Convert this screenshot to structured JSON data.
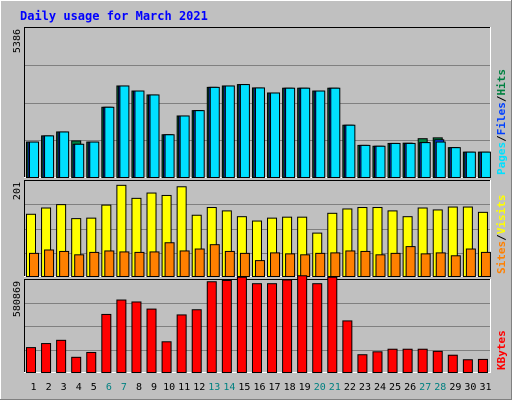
{
  "chart_data": {
    "type": "bar",
    "title": "Daily usage for March 2021",
    "categories": [
      "1",
      "2",
      "3",
      "4",
      "5",
      "6",
      "7",
      "8",
      "9",
      "10",
      "11",
      "12",
      "13",
      "14",
      "15",
      "16",
      "17",
      "18",
      "19",
      "20",
      "21",
      "22",
      "23",
      "24",
      "25",
      "26",
      "27",
      "28",
      "29",
      "30",
      "31"
    ],
    "weekend_days": [
      "6",
      "7",
      "13",
      "14",
      "20",
      "21",
      "27",
      "28"
    ],
    "panels": [
      {
        "name": "hits-files-pages",
        "ymax_label": "5386",
        "ymax": 5386,
        "legend": [
          {
            "text": "Pages",
            "color": "#00e0ff"
          },
          {
            "text": "/",
            "color": "#000000"
          },
          {
            "text": "Files",
            "color": "#0040ff"
          },
          {
            "text": "/",
            "color": "#000000"
          },
          {
            "text": "Hits",
            "color": "#008040"
          }
        ],
        "series": [
          {
            "name": "Hits",
            "color": "#008040",
            "values": [
              1300,
              1520,
              1660,
              1340,
              1300,
              2540,
              3300,
              3120,
              2980,
              1560,
              2230,
              2420,
              3250,
              3300,
              3350,
              3230,
              3050,
              3220,
              3220,
              3120,
              3220,
              1900,
              1180,
              1150,
              1250,
              1260,
              1420,
              1450,
              1100,
              940,
              940
            ]
          },
          {
            "name": "Files",
            "color": "#0040ff",
            "values": [
              1300,
              1520,
              1660,
              1220,
              1300,
              2540,
              3300,
              3120,
              2980,
              1560,
              2230,
              2420,
              3250,
              3300,
              3350,
              3230,
              3050,
              3220,
              3220,
              3120,
              3220,
              1900,
              1180,
              1150,
              1250,
              1250,
              1280,
              1380,
              1100,
              940,
              940
            ]
          },
          {
            "name": "Pages",
            "color": "#00e0ff",
            "values": [
              1300,
              1520,
              1660,
              1220,
              1300,
              2540,
              3300,
              3120,
              2980,
              1560,
              2230,
              2420,
              3250,
              3300,
              3350,
              3230,
              3050,
              3220,
              3220,
              3120,
              3220,
              1900,
              1180,
              1150,
              1250,
              1250,
              1280,
              1300,
              1100,
              940,
              940
            ]
          }
        ]
      },
      {
        "name": "visits-sites",
        "ymax_label": "201",
        "ymax": 201,
        "legend": [
          {
            "text": "Sites",
            "color": "#ff8000"
          },
          {
            "text": "/",
            "color": "#000000"
          },
          {
            "text": "Visits",
            "color": "#ffff00"
          }
        ],
        "series": [
          {
            "name": "Visits",
            "color": "#ffff00",
            "values": [
              131,
              144,
              151,
              122,
              123,
              150,
              191,
              164,
              175,
              170,
              188,
              129,
              145,
              138,
              126,
              117,
              123,
              125,
              125,
              92,
              133,
              142,
              145,
              145,
              138,
              126,
              144,
              140,
              146,
              146,
              135
            ]
          },
          {
            "name": "Sites",
            "color": "#ff8000",
            "values": [
              50,
              57,
              54,
              47,
              52,
              55,
              53,
              52,
              53,
              72,
              55,
              59,
              68,
              54,
              50,
              35,
              51,
              49,
              47,
              50,
              51,
              55,
              54,
              47,
              50,
              64,
              49,
              51,
              45,
              59,
              52
            ]
          }
        ]
      },
      {
        "name": "kbytes",
        "ymax_label": "580869",
        "ymax": 580869,
        "legend": [
          {
            "text": "KBytes",
            "color": "#ff0000"
          }
        ],
        "series": [
          {
            "name": "KBytes",
            "color": "#ff0000",
            "values": [
              160000,
              185000,
              205000,
              100000,
              130000,
              365000,
              454000,
              442000,
              398000,
              196000,
              362000,
              394000,
              567000,
              575000,
              595000,
              555000,
              555000,
              578000,
              604000,
              555000,
              595000,
              325000,
              116000,
              134000,
              150000,
              150000,
              150000,
              137000,
              113000,
              85000,
              87000
            ]
          }
        ]
      }
    ]
  }
}
